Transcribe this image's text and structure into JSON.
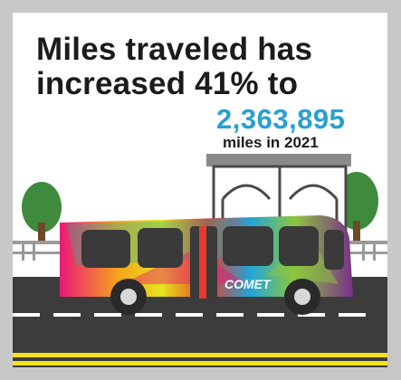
{
  "headline": {
    "line1": "Miles traveled has",
    "line2": "increased 41% to"
  },
  "stat": {
    "value": "2,363,895",
    "caption": "miles in 2021"
  },
  "bus": {
    "brand": "COMET"
  },
  "colors": {
    "frame": "#c8c8c8",
    "accent": "#2a9fd0",
    "road": "#3c3c3c",
    "road_stripe": "#f5e11c"
  },
  "icons": [
    "bus-illustration",
    "bus-shelter-illustration",
    "tree-illustration",
    "road-illustration"
  ]
}
